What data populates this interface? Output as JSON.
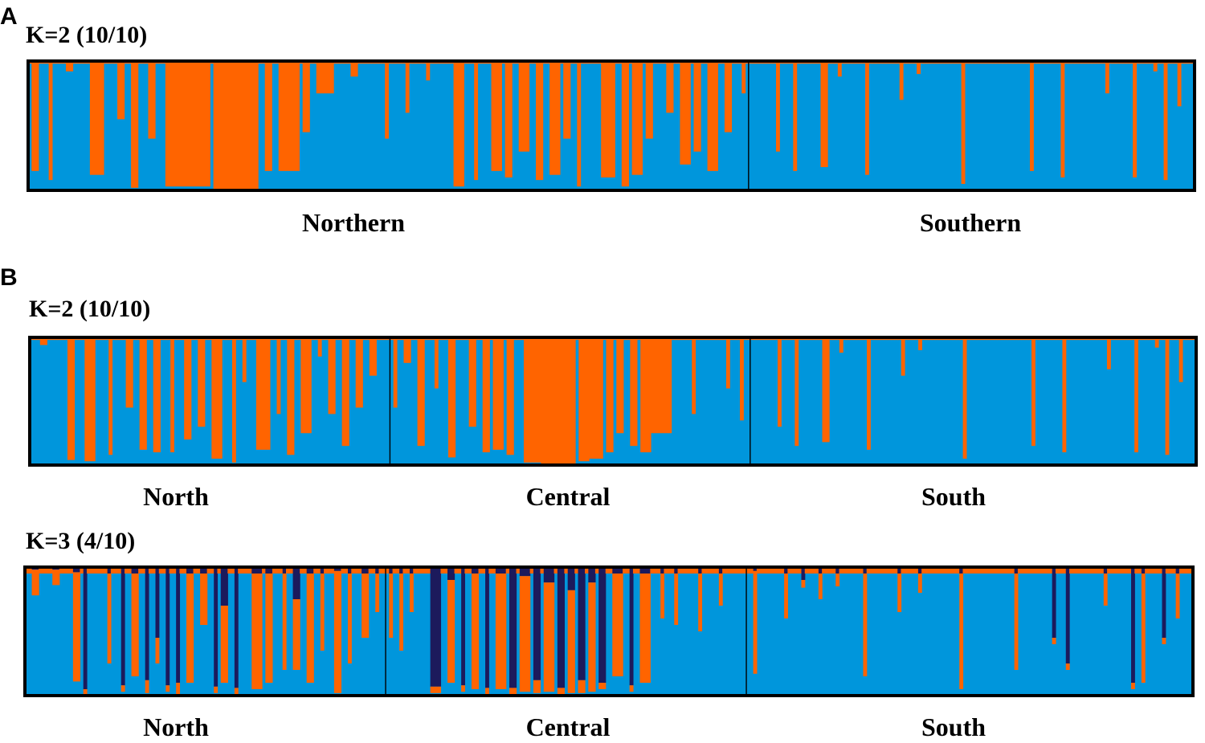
{
  "colors": {
    "cluster1": "#0096dc",
    "cluster2": "#ff6400",
    "cluster3": "#1c1a5c",
    "frame": "#000000",
    "background": "#ffffff"
  },
  "panels": {
    "A": {
      "letter": "A"
    },
    "B": {
      "letter": "B"
    }
  },
  "chart_data": [
    {
      "type": "bar",
      "subtype": "stacked-admixture",
      "panel": "A",
      "title": "K=2 (10/10)",
      "k": 2,
      "ylim": [
        0,
        1
      ],
      "n_individuals": 340,
      "groups": [
        {
          "label": "Northern",
          "n": 210
        },
        {
          "label": "Southern",
          "n": 130
        }
      ],
      "series": [
        {
          "name": "Cluster 1 (blue)",
          "color": "#0096dc"
        },
        {
          "name": "Cluster 2 (orange)",
          "color": "#ff6400"
        }
      ],
      "baseline_q2": 0.02,
      "admixture_bars": [
        {
          "start": 1,
          "end": 2,
          "q2": 0.85
        },
        {
          "start": 6,
          "end": 6,
          "q2": 0.92
        },
        {
          "start": 11,
          "end": 12,
          "q2": 0.08
        },
        {
          "start": 18,
          "end": 21,
          "q2": 0.88
        },
        {
          "start": 26,
          "end": 27,
          "q2": 0.45
        },
        {
          "start": 30,
          "end": 31,
          "q2": 0.98
        },
        {
          "start": 35,
          "end": 36,
          "q2": 0.6
        },
        {
          "start": 40,
          "end": 52,
          "q2": 0.97
        },
        {
          "start": 54,
          "end": 66,
          "q2": 0.99
        },
        {
          "start": 69,
          "end": 70,
          "q2": 0.85
        },
        {
          "start": 73,
          "end": 78,
          "q2": 0.85
        },
        {
          "start": 80,
          "end": 81,
          "q2": 0.55
        },
        {
          "start": 84,
          "end": 88,
          "q2": 0.25
        },
        {
          "start": 94,
          "end": 95,
          "q2": 0.12
        },
        {
          "start": 104,
          "end": 104,
          "q2": 0.6
        },
        {
          "start": 110,
          "end": 110,
          "q2": 0.4
        },
        {
          "start": 116,
          "end": 116,
          "q2": 0.15
        },
        {
          "start": 124,
          "end": 126,
          "q2": 0.97
        },
        {
          "start": 130,
          "end": 130,
          "q2": 0.92
        },
        {
          "start": 135,
          "end": 137,
          "q2": 0.85
        },
        {
          "start": 139,
          "end": 140,
          "q2": 0.9
        },
        {
          "start": 143,
          "end": 145,
          "q2": 0.7
        },
        {
          "start": 148,
          "end": 149,
          "q2": 0.92
        },
        {
          "start": 152,
          "end": 154,
          "q2": 0.88
        },
        {
          "start": 156,
          "end": 157,
          "q2": 0.6
        },
        {
          "start": 160,
          "end": 160,
          "q2": 0.97
        },
        {
          "start": 167,
          "end": 170,
          "q2": 0.9
        },
        {
          "start": 173,
          "end": 174,
          "q2": 0.97
        },
        {
          "start": 176,
          "end": 178,
          "q2": 0.88
        },
        {
          "start": 180,
          "end": 181,
          "q2": 0.6
        },
        {
          "start": 186,
          "end": 187,
          "q2": 0.4
        },
        {
          "start": 190,
          "end": 192,
          "q2": 0.8
        },
        {
          "start": 194,
          "end": 195,
          "q2": 0.7
        },
        {
          "start": 198,
          "end": 200,
          "q2": 0.85
        },
        {
          "start": 203,
          "end": 204,
          "q2": 0.55
        },
        {
          "start": 208,
          "end": 208,
          "q2": 0.25
        },
        {
          "start": 218,
          "end": 218,
          "q2": 0.7
        },
        {
          "start": 223,
          "end": 223,
          "q2": 0.85
        },
        {
          "start": 231,
          "end": 232,
          "q2": 0.82
        },
        {
          "start": 236,
          "end": 236,
          "q2": 0.12
        },
        {
          "start": 244,
          "end": 244,
          "q2": 0.88
        },
        {
          "start": 254,
          "end": 254,
          "q2": 0.3
        },
        {
          "start": 259,
          "end": 259,
          "q2": 0.1
        },
        {
          "start": 272,
          "end": 272,
          "q2": 0.95
        },
        {
          "start": 292,
          "end": 292,
          "q2": 0.85
        },
        {
          "start": 301,
          "end": 301,
          "q2": 0.9
        },
        {
          "start": 314,
          "end": 314,
          "q2": 0.25
        },
        {
          "start": 322,
          "end": 322,
          "q2": 0.9
        },
        {
          "start": 328,
          "end": 328,
          "q2": 0.08
        },
        {
          "start": 331,
          "end": 331,
          "q2": 0.92
        },
        {
          "start": 335,
          "end": 335,
          "q2": 0.35
        }
      ]
    },
    {
      "type": "bar",
      "subtype": "stacked-admixture",
      "panel": "B",
      "title": "K=2 (10/10)",
      "k": 2,
      "ylim": [
        0,
        1
      ],
      "n_individuals": 340,
      "groups": [
        {
          "label": "North",
          "n": 105
        },
        {
          "label": "Central",
          "n": 105
        },
        {
          "label": "South",
          "n": 130
        }
      ],
      "series": [
        {
          "name": "Cluster 1 (blue)",
          "color": "#0096dc"
        },
        {
          "name": "Cluster 2 (orange)",
          "color": "#ff6400"
        }
      ],
      "baseline_q2": 0.02,
      "admixture_bars": [
        {
          "start": 3,
          "end": 4,
          "q2": 0.06
        },
        {
          "start": 11,
          "end": 12,
          "q2": 0.96
        },
        {
          "start": 16,
          "end": 18,
          "q2": 0.97
        },
        {
          "start": 23,
          "end": 23,
          "q2": 0.92
        },
        {
          "start": 28,
          "end": 29,
          "q2": 0.55
        },
        {
          "start": 32,
          "end": 33,
          "q2": 0.88
        },
        {
          "start": 36,
          "end": 37,
          "q2": 0.9
        },
        {
          "start": 41,
          "end": 41,
          "q2": 0.9
        },
        {
          "start": 45,
          "end": 46,
          "q2": 0.8
        },
        {
          "start": 49,
          "end": 50,
          "q2": 0.7
        },
        {
          "start": 53,
          "end": 55,
          "q2": 0.95
        },
        {
          "start": 59,
          "end": 59,
          "q2": 0.98
        },
        {
          "start": 62,
          "end": 62,
          "q2": 0.35
        },
        {
          "start": 66,
          "end": 69,
          "q2": 0.88
        },
        {
          "start": 72,
          "end": 72,
          "q2": 0.6
        },
        {
          "start": 75,
          "end": 76,
          "q2": 0.92
        },
        {
          "start": 79,
          "end": 81,
          "q2": 0.75
        },
        {
          "start": 84,
          "end": 84,
          "q2": 0.15
        },
        {
          "start": 87,
          "end": 88,
          "q2": 0.6
        },
        {
          "start": 91,
          "end": 92,
          "q2": 0.85
        },
        {
          "start": 95,
          "end": 96,
          "q2": 0.55
        },
        {
          "start": 99,
          "end": 100,
          "q2": 0.3
        },
        {
          "start": 106,
          "end": 106,
          "q2": 0.55
        },
        {
          "start": 109,
          "end": 110,
          "q2": 0.2
        },
        {
          "start": 113,
          "end": 114,
          "q2": 0.85
        },
        {
          "start": 118,
          "end": 118,
          "q2": 0.4
        },
        {
          "start": 122,
          "end": 123,
          "q2": 0.94
        },
        {
          "start": 128,
          "end": 129,
          "q2": 0.7
        },
        {
          "start": 132,
          "end": 133,
          "q2": 0.9
        },
        {
          "start": 135,
          "end": 137,
          "q2": 0.88
        },
        {
          "start": 139,
          "end": 140,
          "q2": 0.92
        },
        {
          "start": 144,
          "end": 148,
          "q2": 0.98
        },
        {
          "start": 149,
          "end": 158,
          "q2": 0.99
        },
        {
          "start": 160,
          "end": 162,
          "q2": 0.97
        },
        {
          "start": 163,
          "end": 166,
          "q2": 0.95
        },
        {
          "start": 168,
          "end": 169,
          "q2": 0.9
        },
        {
          "start": 171,
          "end": 172,
          "q2": 0.75
        },
        {
          "start": 175,
          "end": 176,
          "q2": 0.85
        },
        {
          "start": 178,
          "end": 180,
          "q2": 0.9
        },
        {
          "start": 181,
          "end": 186,
          "q2": 0.75
        },
        {
          "start": 193,
          "end": 193,
          "q2": 0.6
        },
        {
          "start": 203,
          "end": 203,
          "q2": 0.4
        },
        {
          "start": 207,
          "end": 207,
          "q2": 0.65
        },
        {
          "start": 218,
          "end": 218,
          "q2": 0.7
        },
        {
          "start": 223,
          "end": 223,
          "q2": 0.85
        },
        {
          "start": 231,
          "end": 232,
          "q2": 0.82
        },
        {
          "start": 236,
          "end": 236,
          "q2": 0.12
        },
        {
          "start": 244,
          "end": 244,
          "q2": 0.88
        },
        {
          "start": 254,
          "end": 254,
          "q2": 0.3
        },
        {
          "start": 259,
          "end": 259,
          "q2": 0.1
        },
        {
          "start": 272,
          "end": 272,
          "q2": 0.95
        },
        {
          "start": 292,
          "end": 292,
          "q2": 0.85
        },
        {
          "start": 301,
          "end": 301,
          "q2": 0.9
        },
        {
          "start": 314,
          "end": 314,
          "q2": 0.25
        },
        {
          "start": 322,
          "end": 322,
          "q2": 0.9
        },
        {
          "start": 328,
          "end": 328,
          "q2": 0.08
        },
        {
          "start": 331,
          "end": 331,
          "q2": 0.92
        },
        {
          "start": 335,
          "end": 335,
          "q2": 0.35
        }
      ]
    },
    {
      "type": "bar",
      "subtype": "stacked-admixture",
      "panel": "B",
      "title": "K=3 (4/10)",
      "k": 3,
      "ylim": [
        0,
        1
      ],
      "n_individuals": 340,
      "groups": [
        {
          "label": "North",
          "n": 105
        },
        {
          "label": "Central",
          "n": 105
        },
        {
          "label": "South",
          "n": 130
        }
      ],
      "series": [
        {
          "name": "Cluster 1 (blue)",
          "color": "#0096dc"
        },
        {
          "name": "Cluster 2 (orange)",
          "color": "#ff6400"
        },
        {
          "name": "Cluster 3 (dark navy)",
          "color": "#1c1a5c"
        }
      ],
      "baseline_q2": 0.04,
      "baseline_q3": 0.01,
      "admixture_bars": [
        {
          "start": 2,
          "end": 3,
          "q2": 0.2,
          "q3": 0.02
        },
        {
          "start": 8,
          "end": 9,
          "q2": 0.12,
          "q3": 0.02
        },
        {
          "start": 14,
          "end": 15,
          "q2": 0.85,
          "q3": 0.04
        },
        {
          "start": 17,
          "end": 17,
          "q2": 0.05,
          "q3": 0.95
        },
        {
          "start": 24,
          "end": 24,
          "q2": 0.7,
          "q3": 0.05
        },
        {
          "start": 28,
          "end": 28,
          "q2": 0.05,
          "q3": 0.92
        },
        {
          "start": 31,
          "end": 32,
          "q2": 0.8,
          "q3": 0.05
        },
        {
          "start": 35,
          "end": 35,
          "q2": 0.1,
          "q3": 0.88
        },
        {
          "start": 38,
          "end": 38,
          "q2": 0.2,
          "q3": 0.55
        },
        {
          "start": 41,
          "end": 41,
          "q2": 0.05,
          "q3": 0.92
        },
        {
          "start": 44,
          "end": 44,
          "q2": 0.1,
          "q3": 0.9
        },
        {
          "start": 47,
          "end": 48,
          "q2": 0.85,
          "q3": 0.05
        },
        {
          "start": 51,
          "end": 52,
          "q2": 0.4,
          "q3": 0.05
        },
        {
          "start": 55,
          "end": 55,
          "q2": 0.05,
          "q3": 0.93
        },
        {
          "start": 57,
          "end": 58,
          "q2": 0.6,
          "q3": 0.3
        },
        {
          "start": 61,
          "end": 61,
          "q2": 0.05,
          "q3": 0.94
        },
        {
          "start": 66,
          "end": 68,
          "q2": 0.9,
          "q3": 0.05
        },
        {
          "start": 70,
          "end": 71,
          "q2": 0.85,
          "q3": 0.05
        },
        {
          "start": 75,
          "end": 75,
          "q2": 0.75,
          "q3": 0.05
        },
        {
          "start": 78,
          "end": 79,
          "q2": 0.55,
          "q3": 0.25
        },
        {
          "start": 82,
          "end": 83,
          "q2": 0.85,
          "q3": 0.05
        },
        {
          "start": 86,
          "end": 86,
          "q2": 0.6,
          "q3": 0.05
        },
        {
          "start": 90,
          "end": 91,
          "q2": 0.95,
          "q3": 0.03
        },
        {
          "start": 94,
          "end": 94,
          "q2": 0.7,
          "q3": 0.05
        },
        {
          "start": 98,
          "end": 99,
          "q2": 0.5,
          "q3": 0.05
        },
        {
          "start": 102,
          "end": 102,
          "q2": 0.3,
          "q3": 0.05
        },
        {
          "start": 106,
          "end": 106,
          "q2": 0.5,
          "q3": 0.05
        },
        {
          "start": 109,
          "end": 109,
          "q2": 0.6,
          "q3": 0.05
        },
        {
          "start": 112,
          "end": 112,
          "q2": 0.3,
          "q3": 0.05
        },
        {
          "start": 118,
          "end": 120,
          "q2": 0.05,
          "q3": 0.93
        },
        {
          "start": 123,
          "end": 124,
          "q2": 0.8,
          "q3": 0.1
        },
        {
          "start": 127,
          "end": 127,
          "q2": 0.05,
          "q3": 0.92
        },
        {
          "start": 130,
          "end": 131,
          "q2": 0.9,
          "q3": 0.05
        },
        {
          "start": 134,
          "end": 134,
          "q2": 0.05,
          "q3": 0.94
        },
        {
          "start": 137,
          "end": 139,
          "q2": 0.9,
          "q3": 0.05
        },
        {
          "start": 141,
          "end": 142,
          "q2": 0.05,
          "q3": 0.94
        },
        {
          "start": 144,
          "end": 146,
          "q2": 0.9,
          "q3": 0.07
        },
        {
          "start": 148,
          "end": 149,
          "q2": 0.1,
          "q3": 0.88
        },
        {
          "start": 151,
          "end": 153,
          "q2": 0.85,
          "q3": 0.12
        },
        {
          "start": 155,
          "end": 156,
          "q2": 0.05,
          "q3": 0.94
        },
        {
          "start": 158,
          "end": 159,
          "q2": 0.8,
          "q3": 0.18
        },
        {
          "start": 161,
          "end": 162,
          "q2": 0.1,
          "q3": 0.88
        },
        {
          "start": 164,
          "end": 165,
          "q2": 0.85,
          "q3": 0.12
        },
        {
          "start": 167,
          "end": 168,
          "q2": 0.05,
          "q3": 0.9
        },
        {
          "start": 171,
          "end": 173,
          "q2": 0.8,
          "q3": 0.05
        },
        {
          "start": 176,
          "end": 176,
          "q2": 0.05,
          "q3": 0.92
        },
        {
          "start": 179,
          "end": 181,
          "q2": 0.85,
          "q3": 0.05
        },
        {
          "start": 185,
          "end": 185,
          "q2": 0.35,
          "q3": 0.05
        },
        {
          "start": 189,
          "end": 189,
          "q2": 0.4,
          "q3": 0.05
        },
        {
          "start": 196,
          "end": 196,
          "q2": 0.45,
          "q3": 0.05
        },
        {
          "start": 202,
          "end": 202,
          "q2": 0.25,
          "q3": 0.05
        },
        {
          "start": 212,
          "end": 212,
          "q2": 0.8,
          "q3": 0.03
        },
        {
          "start": 221,
          "end": 221,
          "q2": 0.35,
          "q3": 0.05
        },
        {
          "start": 226,
          "end": 226,
          "q2": 0.06,
          "q3": 0.1
        },
        {
          "start": 231,
          "end": 231,
          "q2": 0.2,
          "q3": 0.05
        },
        {
          "start": 236,
          "end": 236,
          "q2": 0.1,
          "q3": 0.05
        },
        {
          "start": 244,
          "end": 244,
          "q2": 0.8,
          "q3": 0.05
        },
        {
          "start": 254,
          "end": 254,
          "q2": 0.3,
          "q3": 0.05
        },
        {
          "start": 260,
          "end": 260,
          "q2": 0.15,
          "q3": 0.05
        },
        {
          "start": 272,
          "end": 272,
          "q2": 0.9,
          "q3": 0.05
        },
        {
          "start": 288,
          "end": 288,
          "q2": 0.75,
          "q3": 0.05
        },
        {
          "start": 299,
          "end": 299,
          "q2": 0.05,
          "q3": 0.55
        },
        {
          "start": 303,
          "end": 303,
          "q2": 0.05,
          "q3": 0.75
        },
        {
          "start": 314,
          "end": 314,
          "q2": 0.25,
          "q3": 0.05
        },
        {
          "start": 322,
          "end": 322,
          "q2": 0.05,
          "q3": 0.9
        },
        {
          "start": 325,
          "end": 325,
          "q2": 0.85,
          "q3": 0.05
        },
        {
          "start": 331,
          "end": 331,
          "q2": 0.05,
          "q3": 0.55
        },
        {
          "start": 335,
          "end": 335,
          "q2": 0.35,
          "q3": 0.05
        }
      ]
    }
  ]
}
